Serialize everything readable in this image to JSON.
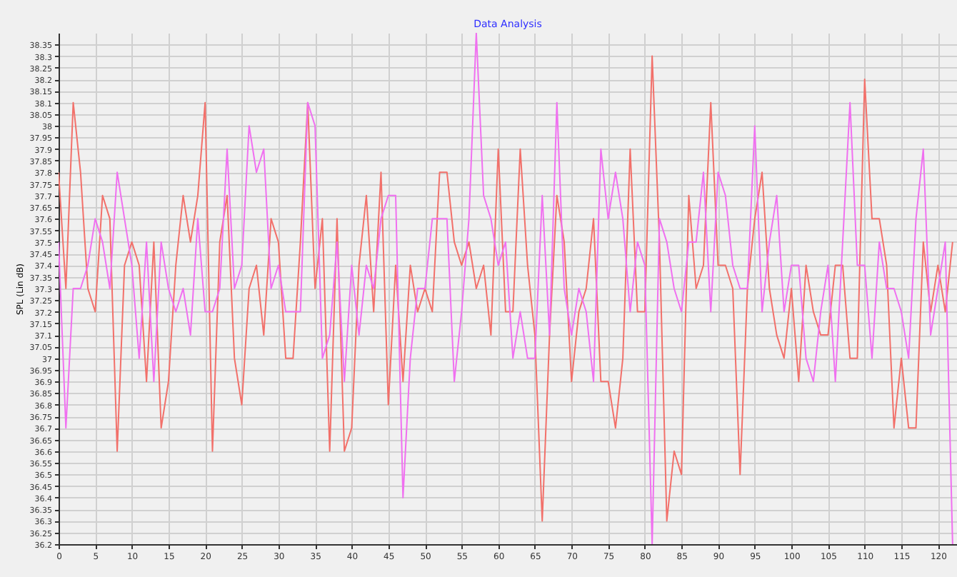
{
  "chart_data": {
    "type": "line",
    "title": "Data Analysis",
    "ylabel": "SPL (Lin dB)",
    "x": [
      0,
      1,
      2,
      3,
      4,
      5,
      6,
      7,
      8,
      9,
      10,
      11,
      12,
      13,
      14,
      15,
      16,
      17,
      18,
      19,
      20,
      21,
      22,
      23,
      24,
      25,
      26,
      27,
      28,
      29,
      30,
      31,
      32,
      33,
      34,
      35,
      36,
      37,
      38,
      39,
      40,
      41,
      42,
      43,
      44,
      45,
      46,
      47,
      48,
      49,
      50,
      51,
      52,
      53,
      54,
      55,
      56,
      57,
      58,
      59,
      60,
      61,
      62,
      63,
      64,
      65,
      66,
      67,
      68,
      69,
      70,
      71,
      72,
      73,
      74,
      75,
      76,
      77,
      78,
      79,
      80,
      81,
      82,
      83,
      84,
      85,
      86,
      87,
      88,
      89,
      90,
      91,
      92,
      93,
      94,
      95,
      96,
      97,
      98,
      99,
      100,
      101,
      102,
      103,
      104,
      105,
      106,
      107,
      108,
      109,
      110,
      111,
      112,
      113,
      114,
      115,
      116,
      117,
      118,
      119,
      120,
      121,
      122
    ],
    "series": [
      {
        "color": "#f2706a",
        "values": [
          37.8,
          37.3,
          38.1,
          37.8,
          37.3,
          37.2,
          37.7,
          37.6,
          36.6,
          37.4,
          37.5,
          37.4,
          36.9,
          37.5,
          36.7,
          36.9,
          37.4,
          37.7,
          37.5,
          37.7,
          38.1,
          36.6,
          37.5,
          37.7,
          37.0,
          36.8,
          37.3,
          37.4,
          37.1,
          37.6,
          37.5,
          37.0,
          37.0,
          37.5,
          38.1,
          37.3,
          37.6,
          36.6,
          37.6,
          36.6,
          36.7,
          37.4,
          37.7,
          37.2,
          37.8,
          36.8,
          37.4,
          36.9,
          37.4,
          37.2,
          37.3,
          37.2,
          37.8,
          37.8,
          37.5,
          37.4,
          37.5,
          37.3,
          37.4,
          37.1,
          37.9,
          37.2,
          37.2,
          37.9,
          37.4,
          37.1,
          36.3,
          37.1,
          37.7,
          37.5,
          36.9,
          37.2,
          37.3,
          37.6,
          36.9,
          36.9,
          36.7,
          37.0,
          37.9,
          37.2,
          37.2,
          38.3,
          37.5,
          36.3,
          36.6,
          36.5,
          37.7,
          37.3,
          37.4,
          38.1,
          37.4,
          37.4,
          37.3,
          36.5,
          37.3,
          37.6,
          37.8,
          37.3,
          37.1,
          37.0,
          37.3,
          36.9,
          37.4,
          37.2,
          37.1,
          37.1,
          37.4,
          37.4,
          37.0,
          37.0,
          38.2,
          37.6,
          37.6,
          37.4,
          36.7,
          37.0,
          36.7,
          36.7,
          37.5,
          37.2,
          37.4,
          37.2,
          37.5
        ]
      },
      {
        "color": "#f070f0",
        "values": [
          37.5,
          36.7,
          37.3,
          37.3,
          37.4,
          37.6,
          37.5,
          37.3,
          37.8,
          37.6,
          37.4,
          37.0,
          37.5,
          36.9,
          37.5,
          37.3,
          37.2,
          37.3,
          37.1,
          37.6,
          37.2,
          37.2,
          37.3,
          37.9,
          37.3,
          37.4,
          38.0,
          37.8,
          37.9,
          37.3,
          37.4,
          37.2,
          37.2,
          37.2,
          38.1,
          38.0,
          37.0,
          37.1,
          37.5,
          36.9,
          37.4,
          37.1,
          37.4,
          37.3,
          37.6,
          37.7,
          37.7,
          36.4,
          37.0,
          37.3,
          37.3,
          37.6,
          37.6,
          37.6,
          36.9,
          37.2,
          37.6,
          38.4,
          37.7,
          37.6,
          37.4,
          37.5,
          37.0,
          37.2,
          37.0,
          37.0,
          37.7,
          37.1,
          38.1,
          37.3,
          37.1,
          37.3,
          37.2,
          36.9,
          37.9,
          37.6,
          37.8,
          37.6,
          37.2,
          37.5,
          37.4,
          36.2,
          37.6,
          37.5,
          37.3,
          37.2,
          37.5,
          37.5,
          37.8,
          37.2,
          37.8,
          37.7,
          37.4,
          37.3,
          37.3,
          38.0,
          37.2,
          37.5,
          37.7,
          37.2,
          37.4,
          37.4,
          37.0,
          36.9,
          37.2,
          37.4,
          36.9,
          37.5,
          38.1,
          37.4,
          37.4,
          37.0,
          37.5,
          37.3,
          37.3,
          37.2,
          37.0,
          37.6,
          37.9,
          37.1,
          37.3,
          37.5,
          36.2
        ]
      }
    ],
    "xlim": [
      0,
      122.6
    ],
    "xticks": [
      0,
      5,
      10,
      15,
      20,
      25,
      30,
      35,
      40,
      45,
      50,
      55,
      60,
      65,
      70,
      75,
      80,
      85,
      90,
      95,
      100,
      105,
      110,
      115,
      120
    ],
    "ylim": [
      36.2,
      38.4
    ],
    "yticks": [
      36.2,
      36.25,
      36.3,
      36.35,
      36.4,
      36.45,
      36.5,
      36.55,
      36.6,
      36.65,
      36.7,
      36.75,
      36.8,
      36.85,
      36.9,
      36.95,
      37,
      37.05,
      37.1,
      37.15,
      37.2,
      37.25,
      37.3,
      37.35,
      37.4,
      37.45,
      37.5,
      37.55,
      37.6,
      37.65,
      37.7,
      37.75,
      37.8,
      37.85,
      37.9,
      37.95,
      38,
      38.05,
      38.1,
      38.15,
      38.2,
      38.25,
      38.3,
      38.35
    ],
    "grid": true,
    "legend": false
  }
}
